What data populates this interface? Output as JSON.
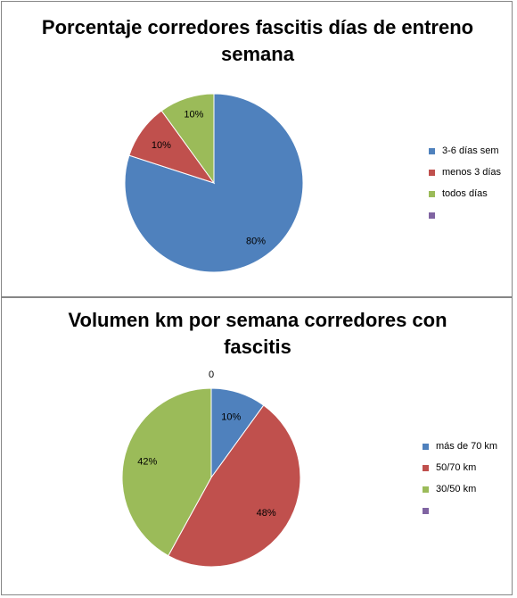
{
  "chart_data": [
    {
      "type": "pie",
      "title": "Porcentaje corredores fascitis días de entreno semana",
      "categories": [
        "3-6 días sem",
        "menos 3 días",
        "todos días",
        ""
      ],
      "values": [
        80,
        10,
        10,
        0
      ],
      "data_labels": [
        "80%",
        "10%",
        "10%",
        ""
      ],
      "colors": [
        "#4f81bd",
        "#c0504d",
        "#9bbb59",
        "#8064a2"
      ],
      "legend_position": "right"
    },
    {
      "type": "pie",
      "title": "Volumen km por semana corredores con fascitis",
      "categories": [
        "más de 70 km",
        "50/70 km",
        "30/50 km",
        ""
      ],
      "values": [
        10,
        48,
        42,
        0
      ],
      "data_labels": [
        "10%",
        "48%",
        "42%",
        "0"
      ],
      "colors": [
        "#4f81bd",
        "#c0504d",
        "#9bbb59",
        "#8064a2"
      ],
      "legend_position": "right"
    }
  ]
}
